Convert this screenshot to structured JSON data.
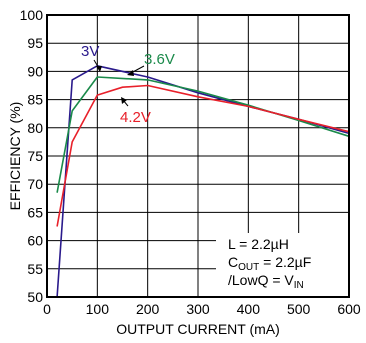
{
  "chart_data": {
    "type": "line",
    "xlabel": "OUTPUT CURRENT (mA)",
    "ylabel": "EFFICIENCY (%)",
    "xlim": [
      0,
      600
    ],
    "ylim": [
      50,
      100
    ],
    "xticks": [
      0,
      100,
      200,
      300,
      400,
      500,
      600
    ],
    "yticks": [
      50,
      55,
      60,
      65,
      70,
      75,
      80,
      85,
      90,
      95,
      100
    ],
    "grid": true,
    "series": [
      {
        "name": "3V",
        "color": "#2a1a8c",
        "x": [
          20,
          50,
          100,
          200,
          300,
          400,
          500,
          600
        ],
        "y": [
          50,
          88.5,
          91,
          89,
          86.2,
          83.8,
          81.5,
          79
        ]
      },
      {
        "name": "3.6V",
        "color": "#1a8a4a",
        "x": [
          20,
          50,
          100,
          200,
          300,
          400,
          500,
          600
        ],
        "y": [
          68.5,
          83,
          89,
          88.5,
          86.5,
          84,
          81.3,
          78.5
        ]
      },
      {
        "name": "4.2V",
        "color": "#e8202a",
        "x": [
          20,
          50,
          100,
          150,
          200,
          300,
          400,
          500,
          600
        ],
        "y": [
          62.5,
          77.5,
          85.8,
          87.2,
          87.5,
          85.5,
          83.8,
          81.5,
          79.3
        ]
      }
    ],
    "conditions": {
      "line1": "L = 2.2µH",
      "line2_prefix": "C",
      "line2_sub": "OUT",
      "line2_suffix": " = 2.2µF",
      "line3_prefix": "/LowQ = V",
      "line3_sub": "IN"
    }
  }
}
